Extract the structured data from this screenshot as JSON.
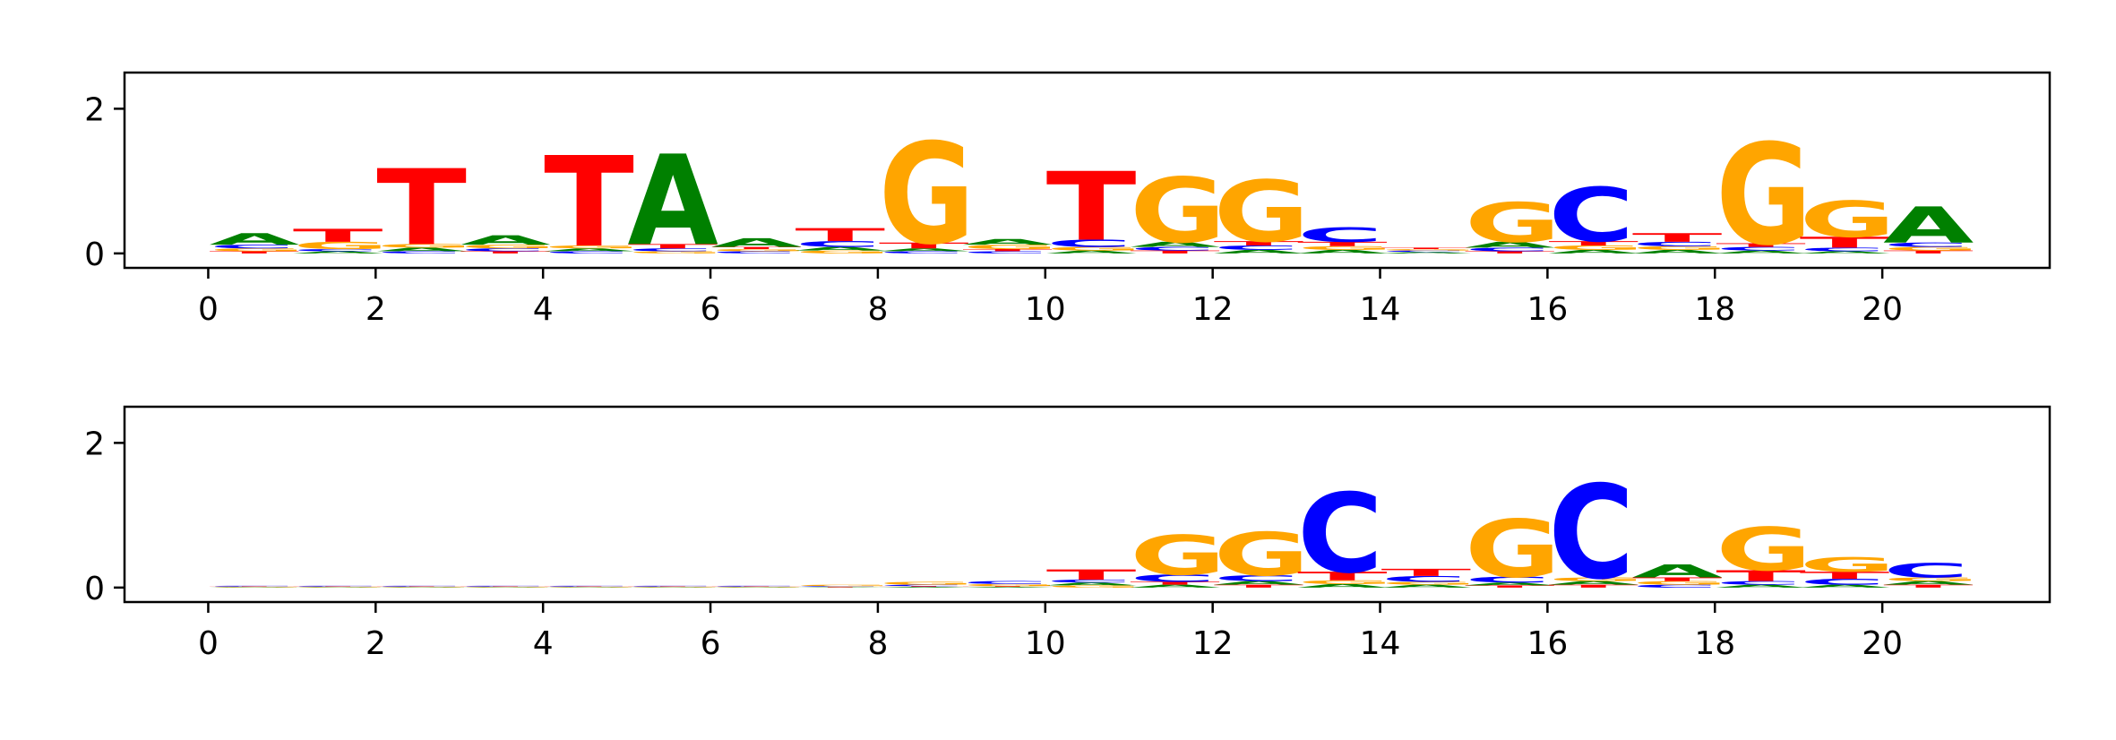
{
  "chart_data": [
    {
      "type": "sequence-logo",
      "title": "",
      "xlabel": "",
      "ylabel": "",
      "xlim": [
        -1,
        22
      ],
      "ylim": [
        -0.2,
        2.5
      ],
      "xticks": [
        "0",
        "2",
        "4",
        "6",
        "8",
        "10",
        "12",
        "14",
        "16",
        "18",
        "20"
      ],
      "yticks": [
        "0",
        "2"
      ],
      "grid": false,
      "positions": [
        {
          "x": 0,
          "A": 0.16,
          "C": 0.05,
          "G": 0.04,
          "T": 0.03
        },
        {
          "x": 1,
          "A": 0.03,
          "C": 0.03,
          "G": 0.1,
          "T": 0.18
        },
        {
          "x": 2,
          "A": 0.05,
          "C": 0.03,
          "G": 0.05,
          "T": 1.05
        },
        {
          "x": 3,
          "A": 0.13,
          "C": 0.04,
          "G": 0.05,
          "T": 0.03
        },
        {
          "x": 4,
          "A": 0.04,
          "C": 0.03,
          "G": 0.04,
          "T": 1.25
        },
        {
          "x": 5,
          "A": 1.25,
          "C": 0.04,
          "G": 0.03,
          "T": 0.06
        },
        {
          "x": 6,
          "A": 0.12,
          "C": 0.03,
          "G": 0.03,
          "T": 0.03
        },
        {
          "x": 7,
          "A": 0.05,
          "C": 0.08,
          "G": 0.04,
          "T": 0.18
        },
        {
          "x": 8,
          "A": 0.04,
          "C": 0.03,
          "G": 1.4,
          "T": 0.08
        },
        {
          "x": 9,
          "A": 0.08,
          "C": 0.03,
          "G": 0.06,
          "T": 0.03
        },
        {
          "x": 10,
          "A": 0.04,
          "C": 0.1,
          "G": 0.05,
          "T": 0.95
        },
        {
          "x": 11,
          "A": 0.07,
          "C": 0.05,
          "G": 0.9,
          "T": 0.04
        },
        {
          "x": 12,
          "A": 0.05,
          "C": 0.06,
          "G": 0.85,
          "T": 0.06
        },
        {
          "x": 13,
          "A": 0.05,
          "C": 0.2,
          "G": 0.05,
          "T": 0.06
        },
        {
          "x": 14,
          "A": 0.02,
          "C": 0.02,
          "G": 0.02,
          "T": 0.02
        },
        {
          "x": 15,
          "A": 0.08,
          "C": 0.05,
          "G": 0.55,
          "T": 0.03
        },
        {
          "x": 16,
          "A": 0.05,
          "C": 0.75,
          "G": 0.06,
          "T": 0.06
        },
        {
          "x": 17,
          "A": 0.05,
          "C": 0.06,
          "G": 0.05,
          "T": 0.12
        },
        {
          "x": 18,
          "A": 0.04,
          "C": 0.05,
          "G": 1.4,
          "T": 0.05
        },
        {
          "x": 19,
          "A": 0.03,
          "C": 0.05,
          "G": 0.5,
          "T": 0.15
        },
        {
          "x": 20,
          "A": 0.5,
          "C": 0.06,
          "G": 0.05,
          "T": 0.04
        }
      ]
    },
    {
      "type": "sequence-logo",
      "title": "",
      "xlabel": "",
      "ylabel": "",
      "xlim": [
        -1,
        22
      ],
      "ylim": [
        -0.2,
        2.5
      ],
      "xticks": [
        "0",
        "2",
        "4",
        "6",
        "8",
        "10",
        "12",
        "14",
        "16",
        "18",
        "20"
      ],
      "yticks": [
        "0",
        "2"
      ],
      "grid": false,
      "positions": [
        {
          "x": 0,
          "A": 0.005,
          "C": 0.01,
          "G": 0.005,
          "T": 0.005
        },
        {
          "x": 1,
          "A": 0.005,
          "C": 0.01,
          "G": 0.005,
          "T": 0.005
        },
        {
          "x": 2,
          "A": 0.005,
          "C": 0.01,
          "G": 0.005,
          "T": 0.005
        },
        {
          "x": 3,
          "A": 0.005,
          "C": 0.01,
          "G": 0.005,
          "T": 0.005
        },
        {
          "x": 4,
          "A": 0.005,
          "C": 0.01,
          "G": 0.005,
          "T": 0.005
        },
        {
          "x": 5,
          "A": 0.005,
          "C": 0.01,
          "G": 0.005,
          "T": 0.005
        },
        {
          "x": 6,
          "A": 0.005,
          "C": 0.01,
          "G": 0.005,
          "T": 0.005
        },
        {
          "x": 7,
          "A": 0.005,
          "C": 0.01,
          "G": 0.02,
          "T": 0.005
        },
        {
          "x": 8,
          "A": 0.01,
          "C": 0.02,
          "G": 0.04,
          "T": 0.01
        },
        {
          "x": 9,
          "A": 0.01,
          "C": 0.04,
          "G": 0.03,
          "T": 0.01
        },
        {
          "x": 10,
          "A": 0.04,
          "C": 0.04,
          "G": 0.03,
          "T": 0.14
        },
        {
          "x": 11,
          "A": 0.04,
          "C": 0.1,
          "G": 0.55,
          "T": 0.04
        },
        {
          "x": 12,
          "A": 0.05,
          "C": 0.08,
          "G": 0.6,
          "T": 0.04
        },
        {
          "x": 13,
          "A": 0.05,
          "C": 1.1,
          "G": 0.05,
          "T": 0.12
        },
        {
          "x": 14,
          "A": 0.04,
          "C": 0.08,
          "G": 0.04,
          "T": 0.1
        },
        {
          "x": 15,
          "A": 0.04,
          "C": 0.08,
          "G": 0.8,
          "T": 0.03
        },
        {
          "x": 16,
          "A": 0.05,
          "C": 1.3,
          "G": 0.05,
          "T": 0.04
        },
        {
          "x": 17,
          "A": 0.18,
          "C": 0.04,
          "G": 0.05,
          "T": 0.05
        },
        {
          "x": 18,
          "A": 0.04,
          "C": 0.05,
          "G": 0.6,
          "T": 0.15
        },
        {
          "x": 19,
          "A": 0.04,
          "C": 0.08,
          "G": 0.2,
          "T": 0.1
        },
        {
          "x": 20,
          "A": 0.05,
          "C": 0.2,
          "G": 0.05,
          "T": 0.04
        }
      ]
    }
  ],
  "colors": {
    "A": "#008000",
    "C": "#0000ff",
    "G": "#ffa500",
    "T": "#ff0000",
    "axis": "#000000",
    "background": "#ffffff"
  }
}
